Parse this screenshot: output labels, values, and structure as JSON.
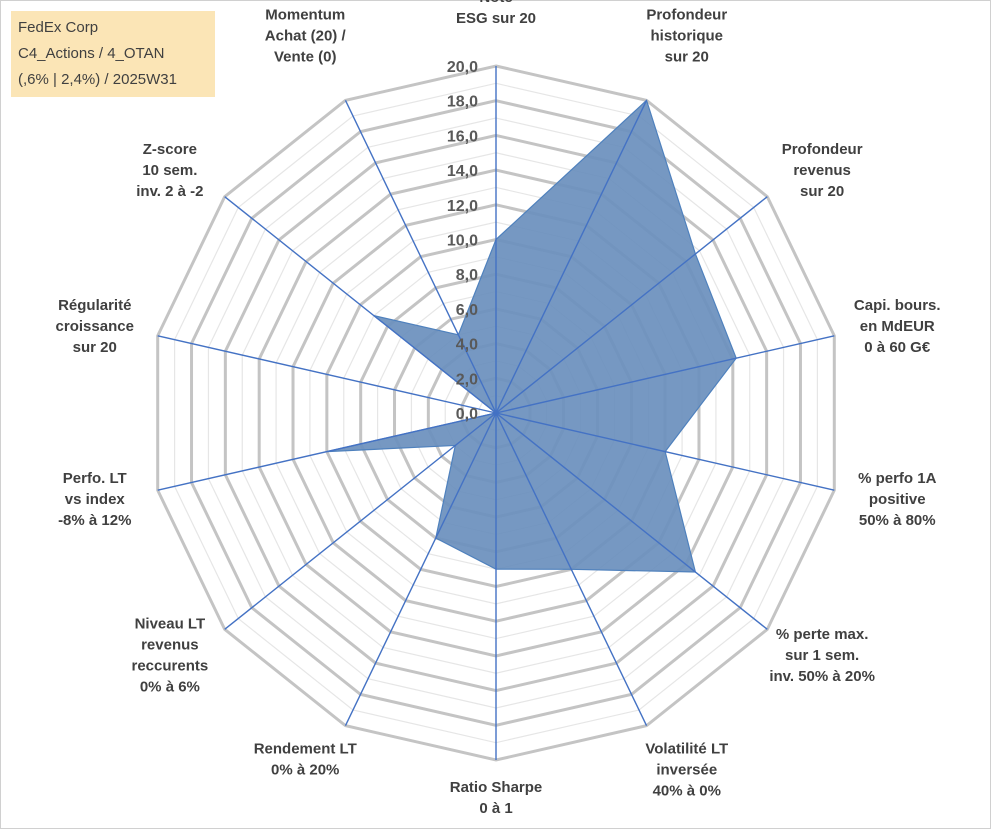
{
  "info_box": {
    "line1": "FedEx Corp",
    "line2": "C4_Actions / 4_OTAN",
    "line3": "(,6% | 2,4%) / 2025W31"
  },
  "chart_data": {
    "type": "radar",
    "r_min": 0,
    "r_max": 20,
    "tick_step": 2,
    "tick_labels": [
      "0,0",
      "2,0",
      "4,0",
      "6,0",
      "8,0",
      "10,0",
      "12,0",
      "14,0",
      "16,0",
      "18,0",
      "20,0"
    ],
    "grid": true,
    "categories": [
      [
        "Note",
        "ESG sur 20"
      ],
      [
        "Profondeur",
        "historique",
        "sur 20"
      ],
      [
        "Profondeur",
        "revenus",
        "sur 20"
      ],
      [
        "Capi. bours.",
        "en MdEUR",
        "0 à 60 G€"
      ],
      [
        "% perfo 1A",
        "positive",
        "50% à 80%"
      ],
      [
        "% perte max.",
        "sur 1 sem.",
        "inv. 50% à 20%"
      ],
      [
        "Volatilité LT",
        "inversée",
        "40% à 0%"
      ],
      [
        "Ratio Sharpe",
        "0 à 1"
      ],
      [
        "Rendement LT",
        "0% à 20%"
      ],
      [
        "Niveau LT",
        "revenus",
        "reccurents",
        "0% à 6%"
      ],
      [
        "Perfo. LT",
        "vs index",
        "-8% à 12%"
      ],
      [
        "Régularité",
        "croissance",
        "sur 20"
      ],
      [
        "Z-score",
        "10 sem.",
        "inv. 2 à -2"
      ],
      [
        "Momentum",
        "Achat (20) /",
        "Vente (0)"
      ]
    ],
    "series": [
      {
        "values": [
          10.0,
          20.0,
          14.7,
          14.2,
          10.0,
          14.7,
          10.0,
          9.0,
          8.0,
          3.0,
          10.0,
          0.0,
          9.0,
          5.0
        ],
        "color": "#4f81bd"
      }
    ],
    "colors": {
      "fill": "#6a8fbd",
      "spoke": "#4472c4",
      "grid_major": "#c4c4c4",
      "grid_minor": "#e6e6e6",
      "info_bg": "#fbe5b6"
    }
  }
}
